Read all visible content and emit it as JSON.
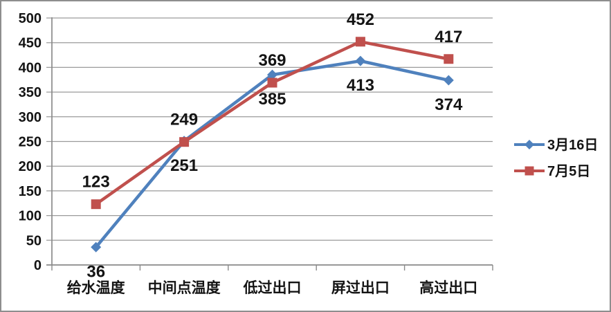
{
  "chart_data": {
    "type": "line",
    "title": "",
    "categories": [
      "给水温度",
      "中间点温度",
      "低过出口",
      "屏过出口",
      "高过出口"
    ],
    "series": [
      {
        "name": "3月16日",
        "color": "#4F81BD",
        "marker": "diamond",
        "values": [
          36,
          251,
          385,
          413,
          374
        ],
        "data_labels": [
          "36",
          "251",
          "385",
          "413",
          "374"
        ],
        "label_position": "below"
      },
      {
        "name": "7月5日",
        "color": "#C0504D",
        "marker": "square",
        "values": [
          123,
          249,
          369,
          452,
          417
        ],
        "data_labels": [
          "123",
          "249",
          "369",
          "452",
          "417"
        ],
        "label_position": "above"
      }
    ],
    "y_axis": {
      "min": 0,
      "max": 500,
      "step": 50,
      "tick_labels": [
        "0",
        "50",
        "100",
        "150",
        "200",
        "250",
        "300",
        "350",
        "400",
        "450",
        "500"
      ]
    },
    "xlabel": "",
    "ylabel": "",
    "grid": true,
    "legend_position": "right",
    "colors": {
      "gridline": "#9a9a9a",
      "axis": "#8a8a8a",
      "text": "#141414",
      "frame_border": "#8e8e8e",
      "background": "#ffffff"
    }
  }
}
